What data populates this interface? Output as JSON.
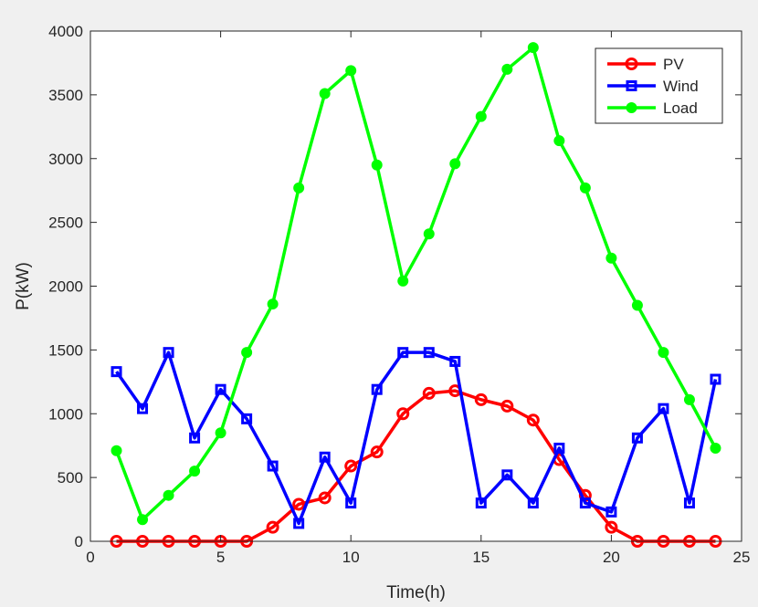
{
  "chart_data": {
    "type": "line",
    "xlabel": "Time(h)",
    "ylabel": "P(kW)",
    "xlim": [
      0,
      25
    ],
    "ylim": [
      0,
      4000
    ],
    "xticks": [
      0,
      5,
      10,
      15,
      20,
      25
    ],
    "yticks": [
      0,
      500,
      1000,
      1500,
      2000,
      2500,
      3000,
      3500,
      4000
    ],
    "grid": false,
    "legend_position": "top-right",
    "x": [
      1,
      2,
      3,
      4,
      5,
      6,
      7,
      8,
      9,
      10,
      11,
      12,
      13,
      14,
      15,
      16,
      17,
      18,
      19,
      20,
      21,
      22,
      23,
      24
    ],
    "series": [
      {
        "name": "PV",
        "color": "#ff0000",
        "marker": "circle",
        "values": [
          0,
          0,
          0,
          0,
          0,
          0,
          110,
          290,
          340,
          590,
          700,
          1000,
          1160,
          1180,
          1110,
          1060,
          950,
          640,
          360,
          110,
          0,
          0,
          0,
          0
        ]
      },
      {
        "name": "Wind",
        "color": "#0000ff",
        "marker": "square",
        "values": [
          1330,
          1040,
          1480,
          810,
          1190,
          960,
          590,
          140,
          660,
          300,
          1190,
          1480,
          1480,
          1410,
          300,
          520,
          300,
          730,
          300,
          230,
          810,
          1040,
          300,
          1270
        ]
      },
      {
        "name": "Load",
        "color": "#00ff00",
        "marker": "dot",
        "values": [
          710,
          170,
          360,
          550,
          850,
          1480,
          1860,
          2770,
          3510,
          3690,
          2950,
          2040,
          2410,
          2960,
          3330,
          3700,
          3870,
          3140,
          2770,
          2220,
          1850,
          1480,
          1110,
          730
        ]
      }
    ]
  }
}
